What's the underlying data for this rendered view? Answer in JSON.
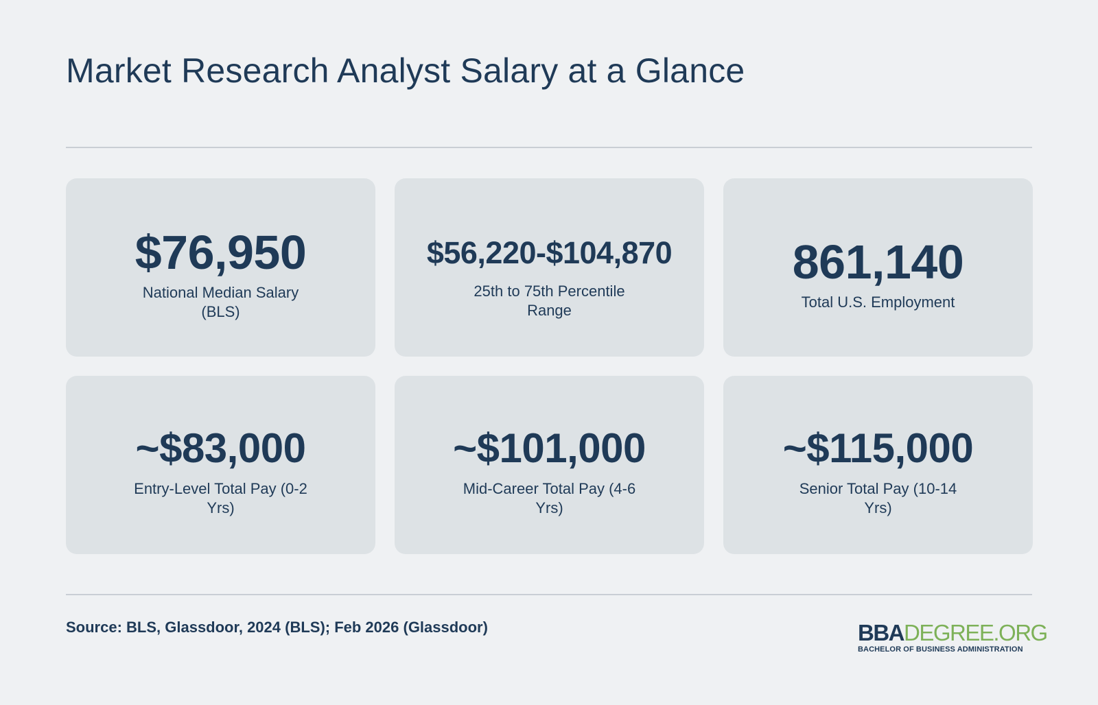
{
  "title": "Market Research Analyst Salary at a Glance",
  "cards": [
    {
      "value": "$76,950",
      "label": "National Median Salary (BLS)"
    },
    {
      "value": "$56,220-$104,870",
      "label": "25th to 75th Percentile Range"
    },
    {
      "value": "861,140",
      "label": "Total U.S. Employment"
    },
    {
      "value": "~$83,000",
      "label": "Entry-Level Total Pay (0-2 Yrs)"
    },
    {
      "value": "~$101,000",
      "label": "Mid-Career Total Pay (4-6 Yrs)"
    },
    {
      "value": "~$115,000",
      "label": "Senior Total Pay (10-14 Yrs)"
    }
  ],
  "source": "Source: BLS, Glassdoor, 2024 (BLS); Feb 2026 (Glassdoor)",
  "logo": {
    "part1": "BBA",
    "part2": "DEGREE.ORG",
    "tagline": "BACHELOR OF BUSINESS ADMINISTRATION"
  },
  "colors": {
    "background": "#eff1f3",
    "card": "#dde2e5",
    "text": "#1f3a57",
    "logo_accent": "#7db158"
  }
}
